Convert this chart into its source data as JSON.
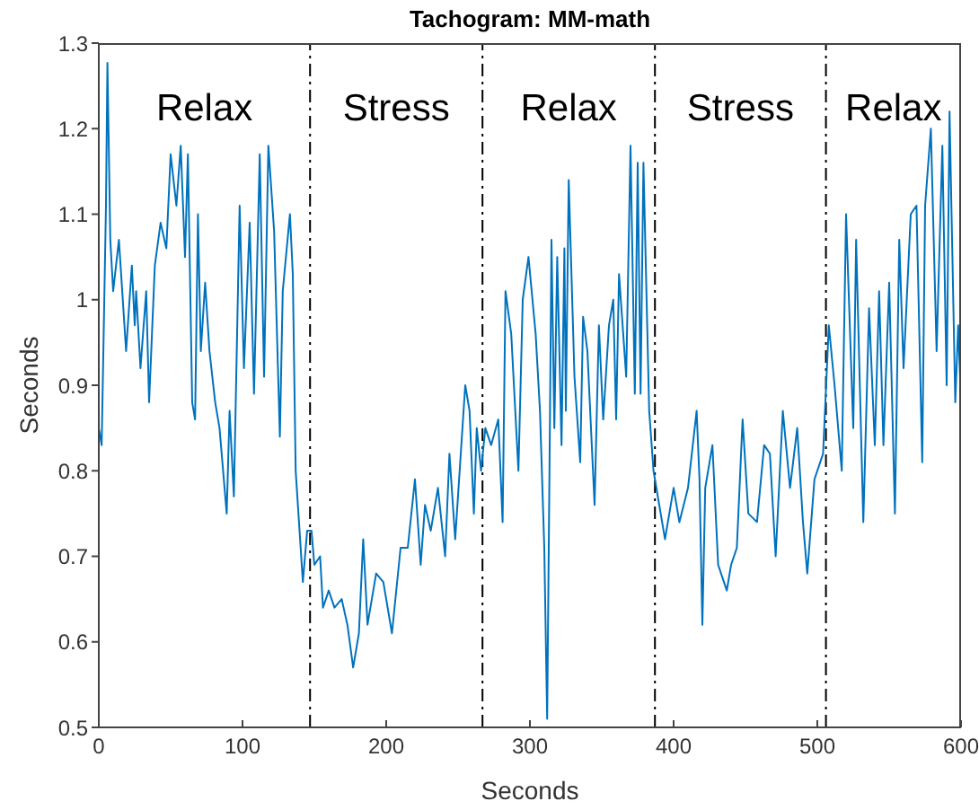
{
  "chart_data": {
    "type": "line",
    "title": "Tachogram: MM-math",
    "xlabel": "Seconds",
    "ylabel": "Seconds",
    "xlim": [
      0,
      600
    ],
    "xticks": [
      0,
      100,
      200,
      300,
      400,
      500,
      600
    ],
    "ylim": [
      0.5,
      1.3
    ],
    "yticks": [
      0.5,
      0.6,
      0.7,
      0.8,
      0.9,
      1,
      1.1,
      1.2,
      1.3
    ],
    "grid": false,
    "marker": "none",
    "line_style": "solid",
    "ref_lines": [
      {
        "axis": "x",
        "value": 147,
        "color": "#000000",
        "line_style": "dashdot"
      },
      {
        "axis": "x",
        "value": 267,
        "color": "#000000",
        "line_style": "dashdot"
      },
      {
        "axis": "x",
        "value": 387,
        "color": "#000000",
        "line_style": "dashdot"
      },
      {
        "axis": "x",
        "value": 506,
        "color": "#000000",
        "line_style": "dashdot"
      }
    ],
    "annotations": [
      "Relax",
      "Stress",
      "Relax",
      "Stress",
      "Relax"
    ],
    "series": [
      {
        "color": "#0072bd",
        "x": [
          0,
          2,
          5,
          6,
          8,
          10,
          14,
          19,
          23,
          25,
          26,
          29,
          33,
          35,
          39,
          43,
          47,
          50,
          54,
          57,
          60,
          62,
          65,
          67,
          69,
          71,
          74,
          77,
          81,
          84,
          89,
          91,
          94,
          98,
          101,
          105,
          108,
          112,
          115,
          118,
          122,
          126,
          128,
          133,
          135,
          137,
          142,
          145,
          148,
          150,
          154,
          156,
          160,
          164,
          169,
          173,
          177,
          181,
          184,
          187,
          193,
          198,
          204,
          210,
          215,
          220,
          224,
          227,
          231,
          236,
          241,
          244,
          248,
          255,
          258,
          261,
          263,
          266,
          269,
          273,
          278,
          281,
          283,
          287,
          292,
          295,
          299,
          304,
          307,
          310,
          312,
          314,
          315,
          317,
          319,
          322,
          324,
          325,
          327,
          331,
          335,
          337,
          340,
          345,
          348,
          351,
          355,
          358,
          360,
          362,
          367,
          370,
          373,
          375,
          377,
          379,
          383,
          386,
          390,
          394,
          400,
          404,
          410,
          416,
          418,
          420,
          422,
          427,
          431,
          437,
          440,
          444,
          448,
          452,
          458,
          463,
          467,
          471,
          476,
          481,
          486,
          490,
          493,
          498,
          504,
          508,
          512,
          517,
          520,
          525,
          527,
          532,
          536,
          540,
          543,
          546,
          550,
          554,
          557,
          560,
          565,
          569,
          573,
          575,
          579,
          583,
          587,
          590,
          592,
          596,
          598,
          600
        ],
        "values": [
          0.85,
          0.83,
          1.11,
          1.277,
          1.07,
          1.01,
          1.07,
          0.94,
          1.04,
          0.97,
          1.01,
          0.92,
          1.01,
          0.88,
          1.04,
          1.09,
          1.06,
          1.17,
          1.11,
          1.18,
          1.05,
          1.17,
          0.88,
          0.86,
          1.1,
          0.94,
          1.02,
          0.94,
          0.88,
          0.85,
          0.75,
          0.87,
          0.77,
          1.11,
          0.92,
          1.09,
          0.89,
          1.17,
          0.91,
          1.18,
          1.08,
          0.84,
          1.01,
          1.1,
          1.03,
          0.8,
          0.67,
          0.73,
          0.73,
          0.69,
          0.7,
          0.64,
          0.66,
          0.64,
          0.65,
          0.62,
          0.57,
          0.61,
          0.72,
          0.62,
          0.68,
          0.67,
          0.61,
          0.71,
          0.71,
          0.79,
          0.69,
          0.76,
          0.73,
          0.78,
          0.7,
          0.82,
          0.72,
          0.9,
          0.87,
          0.75,
          0.85,
          0.8,
          0.85,
          0.83,
          0.86,
          0.74,
          1.01,
          0.96,
          0.8,
          1,
          1.05,
          0.96,
          0.87,
          0.71,
          0.51,
          0.87,
          1.07,
          0.85,
          1.05,
          0.83,
          1.06,
          0.87,
          1.14,
          0.91,
          0.81,
          0.98,
          0.94,
          0.76,
          0.97,
          0.86,
          0.97,
          1,
          0.86,
          1.03,
          0.91,
          1.18,
          0.89,
          1.16,
          0.89,
          1.16,
          0.87,
          0.8,
          0.76,
          0.72,
          0.78,
          0.74,
          0.78,
          0.87,
          0.79,
          0.62,
          0.78,
          0.83,
          0.69,
          0.66,
          0.69,
          0.71,
          0.86,
          0.75,
          0.74,
          0.83,
          0.82,
          0.7,
          0.87,
          0.78,
          0.85,
          0.74,
          0.68,
          0.79,
          0.82,
          0.97,
          0.9,
          0.8,
          1.1,
          0.85,
          1.07,
          0.74,
          0.99,
          0.83,
          1.01,
          0.83,
          1.02,
          0.75,
          1.07,
          0.92,
          1.1,
          1.11,
          0.81,
          1.11,
          1.2,
          0.94,
          1.18,
          0.9,
          1.22,
          0.88,
          0.97,
          0.88
        ]
      }
    ]
  }
}
